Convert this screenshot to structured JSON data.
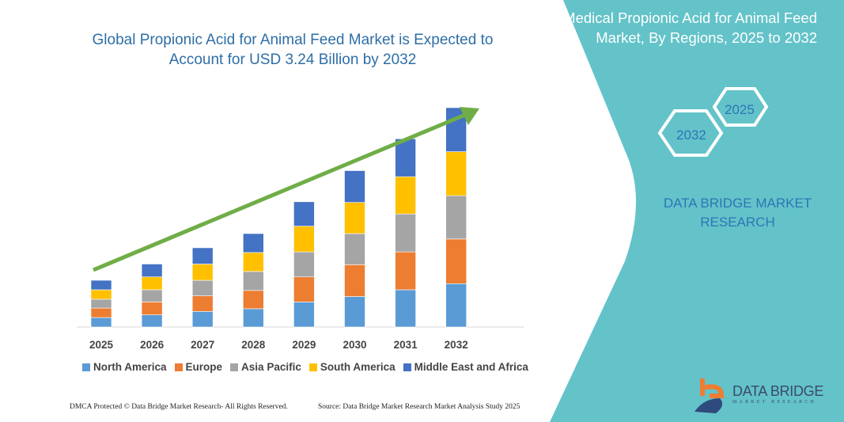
{
  "chart_data": {
    "type": "bar",
    "stacked": true,
    "title": "Global Propionic Acid for Animal Feed Market is Expected to Account for USD 3.24 Billion by 2032",
    "categories": [
      "2025",
      "2026",
      "2027",
      "2028",
      "2029",
      "2030",
      "2031",
      "2032"
    ],
    "series": [
      {
        "name": "North America",
        "color": "#5b9bd5",
        "values": [
          0.14,
          0.18,
          0.23,
          0.27,
          0.37,
          0.45,
          0.55,
          0.64
        ]
      },
      {
        "name": "Europe",
        "color": "#ed7d31",
        "values": [
          0.14,
          0.19,
          0.23,
          0.27,
          0.37,
          0.47,
          0.56,
          0.66
        ]
      },
      {
        "name": "Asia Pacific",
        "color": "#a5a5a5",
        "values": [
          0.13,
          0.18,
          0.23,
          0.28,
          0.37,
          0.46,
          0.56,
          0.64
        ]
      },
      {
        "name": "South America",
        "color": "#ffc000",
        "values": [
          0.14,
          0.19,
          0.24,
          0.28,
          0.38,
          0.46,
          0.55,
          0.65
        ]
      },
      {
        "name": "Middle East and Africa",
        "color": "#4472c4",
        "values": [
          0.14,
          0.19,
          0.24,
          0.28,
          0.36,
          0.47,
          0.56,
          0.65
        ]
      }
    ],
    "ylim": [
      0,
      3.3
    ],
    "grid": false,
    "legend": "bottom",
    "trend_arrow_color": "#70ad47"
  },
  "side_panel": {
    "title": "Medical Propionic Acid for Animal Feed Market, By Regions, 2025 to 2032",
    "hex_start": "2025",
    "hex_end": "2032",
    "brand": "DATA BRIDGE MARKET RESEARCH",
    "color": "#63c3c9"
  },
  "logo": {
    "name": "DATA BRIDGE",
    "sub": "MARKET RESEARCH"
  },
  "footer": {
    "left": "DMCA Protected © Data Bridge Market Research- All Rights Reserved.",
    "right": "Source: Data Bridge Market Research Market Analysis Study 2025"
  }
}
